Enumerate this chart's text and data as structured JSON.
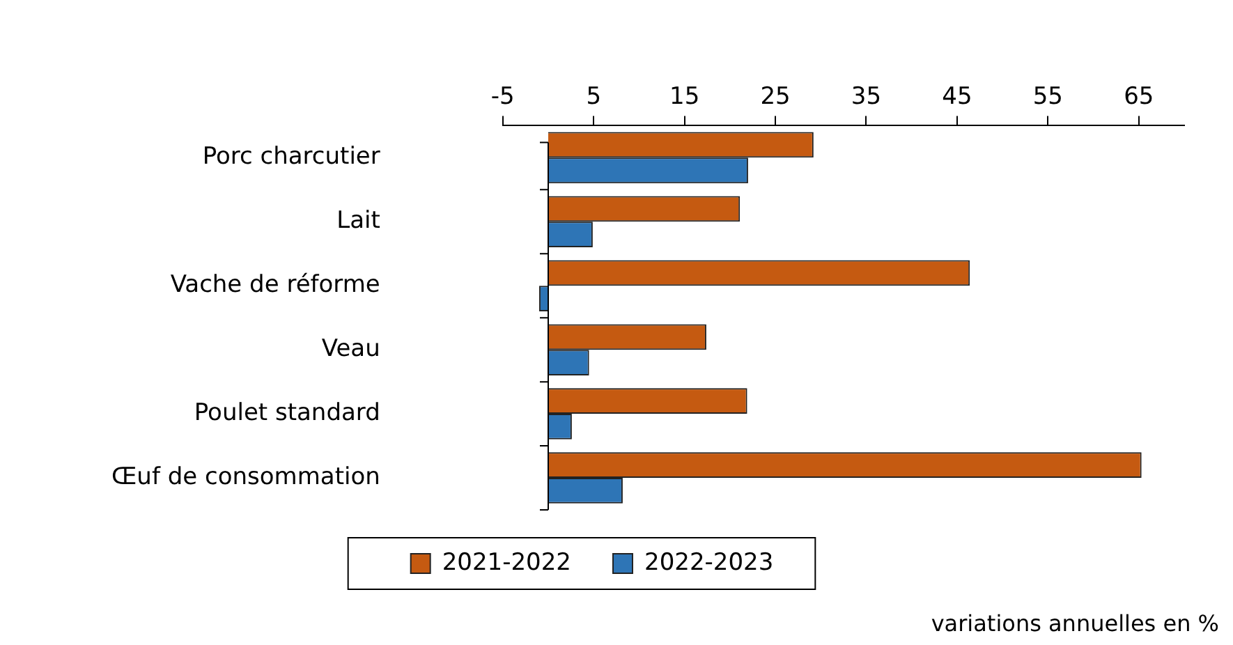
{
  "chart_data": {
    "type": "bar",
    "orientation": "horizontal",
    "categories": [
      "Porc charcutier",
      "Lait",
      "Vache de réforme",
      "Veau",
      "Poulet standard",
      "Œuf de consommation"
    ],
    "series": [
      {
        "name": "2021-2022",
        "color": "#c55a11",
        "values": [
          29.2,
          21.1,
          46.4,
          17.4,
          21.9,
          65.3
        ]
      },
      {
        "name": "2022-2023",
        "color": "#2e75b6",
        "values": [
          22.0,
          4.9,
          -1.0,
          4.5,
          2.6,
          8.2
        ]
      }
    ],
    "xlim": [
      -5,
      70
    ],
    "xticks": [
      -5,
      5,
      15,
      25,
      35,
      45,
      55,
      65
    ],
    "grid": false,
    "legend": "bottom",
    "annotations": [
      "variations annuelles en %"
    ]
  }
}
